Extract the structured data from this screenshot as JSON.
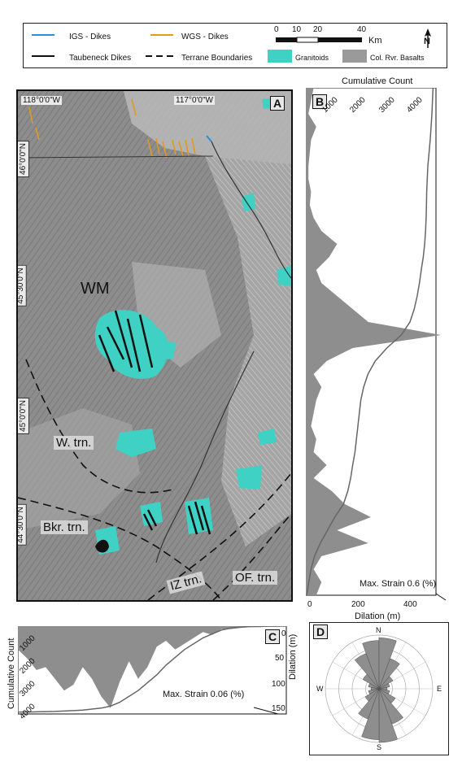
{
  "legend": {
    "igs": "IGS - Dikes",
    "wgs": "WGS - Dikes",
    "taubeneck": "Taubeneck Dikes",
    "terrane": "Terrane Boundaries",
    "granitoids": "Granitoids",
    "basalts": "Col. Rvr. Basalts",
    "scale_ticks": [
      "0",
      "10",
      "20",
      "40"
    ],
    "scale_unit": "Km",
    "north": "N",
    "colors": {
      "igs": "#2a8fd6",
      "wgs": "#e09a1e",
      "taubeneck": "#111111",
      "granitoids": "#3fd1c4",
      "basalts": "#9a9a9a"
    }
  },
  "panel_a": {
    "letter": "A",
    "lon_labels": [
      "118°0'0\"W",
      "117°0'0\"W"
    ],
    "lat_labels": [
      "46°0'0\"N",
      "45°30'0\"N",
      "45°0'0\"N",
      "44°30'0\"N"
    ],
    "regions": [
      "WM",
      "W. trn.",
      "Bkr. trn.",
      "IZ trn.",
      "OF. trn."
    ]
  },
  "panel_b": {
    "letter": "B",
    "top_axis_title": "Cumulative Count",
    "top_ticks": [
      "1000",
      "2000",
      "3000",
      "4000"
    ],
    "bottom_axis_title": "Dilation (m)",
    "bottom_ticks": [
      "0",
      "200",
      "400"
    ],
    "annotation": "Max. Strain 0.6 (%)"
  },
  "panel_c": {
    "letter": "C",
    "left_axis_title": "Cumulative Count",
    "left_ticks": [
      "1000",
      "2000",
      "3000",
      "4000"
    ],
    "right_axis_title": "Dilation (m)",
    "right_ticks": [
      "0",
      "50",
      "100",
      "150"
    ],
    "annotation": "Max. Strain 0.06 (%)"
  },
  "panel_d": {
    "letter": "D",
    "directions": [
      "N",
      "E",
      "S",
      "W"
    ]
  },
  "chart_data": [
    {
      "type": "area",
      "panel": "B",
      "orientation": "vertical (depth from north to south)",
      "x_axis": "Dilation (m)",
      "xlim": [
        0,
        500
      ],
      "y_samples": 40,
      "dilation_profile": [
        30,
        20,
        10,
        40,
        20,
        15,
        10,
        10,
        20,
        15,
        30,
        60,
        120,
        90,
        40,
        60,
        120,
        180,
        240,
        520,
        180,
        80,
        30,
        60,
        40,
        30,
        20,
        40,
        30,
        80,
        30,
        100,
        150,
        250,
        120,
        240,
        60,
        30,
        60,
        40
      ],
      "cumulative_axis": "Cumulative Count",
      "cumulative_lim": [
        0,
        4500
      ],
      "cumulative_profile": [
        4400,
        4380,
        4360,
        4330,
        4300,
        4260,
        4220,
        4200,
        4180,
        4170,
        4160,
        4140,
        4110,
        4060,
        3990,
        3930,
        3850,
        3750,
        3600,
        3300,
        2800,
        2400,
        2150,
        2000,
        1900,
        1850,
        1800,
        1750,
        1700,
        1620,
        1550,
        1450,
        1300,
        1000,
        750,
        500,
        300,
        180,
        100,
        30
      ]
    },
    {
      "type": "area",
      "panel": "C",
      "orientation": "horizontal (west to east)",
      "y_axis": "Dilation (m)",
      "ylim": [
        0,
        150
      ],
      "x_samples": 30,
      "dilation_profile": [
        40,
        55,
        75,
        70,
        90,
        110,
        100,
        70,
        90,
        120,
        140,
        95,
        60,
        90,
        70,
        35,
        25,
        40,
        30,
        20,
        10,
        15,
        5,
        5,
        3,
        2,
        2,
        1,
        1,
        0
      ],
      "cumulative_axis": "Cumulative Count",
      "cumulative_lim": [
        0,
        4500
      ],
      "cumulative_profile": [
        4400,
        4400,
        4390,
        4380,
        4370,
        4350,
        4330,
        4300,
        4250,
        4200,
        4100,
        3900,
        3600,
        3300,
        2900,
        2500,
        2000,
        1600,
        1200,
        900,
        600,
        400,
        200,
        100,
        50,
        20,
        10,
        5,
        2,
        0
      ]
    },
    {
      "type": "rose",
      "panel": "D",
      "dominant_orientation": "NNW-SSE",
      "petal_lengths": [
        0.9,
        0.95,
        0.6,
        0.3,
        0.2,
        0.15,
        0.2,
        0.35,
        0.7,
        1.0,
        0.95,
        0.6,
        0.3,
        0.2,
        0.15,
        0.2,
        0.35,
        0.7
      ]
    }
  ]
}
